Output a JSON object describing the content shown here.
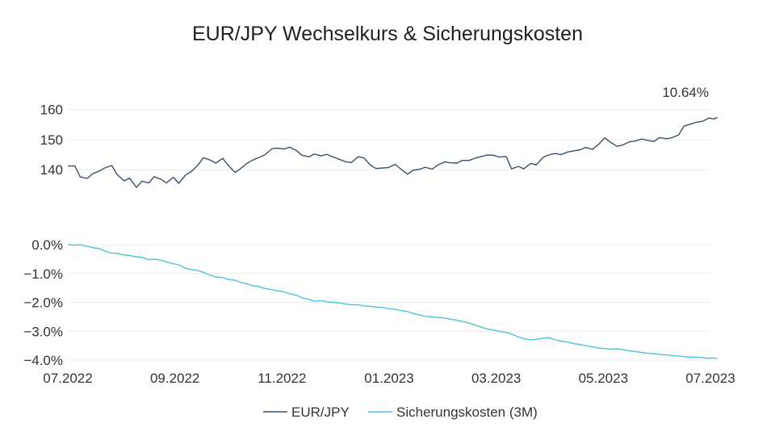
{
  "chart_data": {
    "type": "line",
    "title": "EUR/JPY Wechselkurs & Sicherungskosten",
    "x_tick_labels": [
      "07.2022",
      "09.2022",
      "11.2022",
      "01.2023",
      "03.2023",
      "05.2023",
      "07.2023"
    ],
    "x_range": [
      "2022-07-01",
      "2023-07-01"
    ],
    "grid": true,
    "legend_position": "bottom-center",
    "panels": [
      {
        "name": "EUR/JPY",
        "y_tick_labels": [
          "140",
          "150",
          "160"
        ],
        "ylim": [
          132,
          161
        ],
        "annotation": "10.64%",
        "color": "#3d5166"
      },
      {
        "name": "Sicherungskosten (3M)",
        "y_tick_labels": [
          "0.0%",
          "−1.0%",
          "−2.0%",
          "−3.0%",
          "−4.0%"
        ],
        "ylim": [
          -4.0,
          0.0
        ],
        "color": "#4fc3d9"
      }
    ],
    "series": [
      {
        "name": "EUR/JPY",
        "color": "#3d5166",
        "points": [
          [
            "2022-07-01",
            141.2
          ],
          [
            "2022-07-05",
            141.3
          ],
          [
            "2022-07-08",
            137.6
          ],
          [
            "2022-07-12",
            137.1
          ],
          [
            "2022-07-15",
            138.6
          ],
          [
            "2022-07-19",
            139.6
          ],
          [
            "2022-07-22",
            140.6
          ],
          [
            "2022-07-26",
            141.4
          ],
          [
            "2022-07-29",
            138.4
          ],
          [
            "2022-08-02",
            136.3
          ],
          [
            "2022-08-05",
            137.2
          ],
          [
            "2022-08-09",
            134.1
          ],
          [
            "2022-08-12",
            136.2
          ],
          [
            "2022-08-16",
            135.6
          ],
          [
            "2022-08-19",
            137.7
          ],
          [
            "2022-08-23",
            136.8
          ],
          [
            "2022-08-26",
            135.6
          ],
          [
            "2022-08-30",
            137.5
          ],
          [
            "2022-09-02",
            135.5
          ],
          [
            "2022-09-06",
            138.3
          ],
          [
            "2022-09-09",
            139.3
          ],
          [
            "2022-09-13",
            141.6
          ],
          [
            "2022-09-16",
            144.0
          ],
          [
            "2022-09-20",
            143.2
          ],
          [
            "2022-09-23",
            142.2
          ],
          [
            "2022-09-27",
            143.8
          ],
          [
            "2022-09-30",
            141.5
          ],
          [
            "2022-10-04",
            139.1
          ],
          [
            "2022-10-07",
            140.3
          ],
          [
            "2022-10-11",
            142.2
          ],
          [
            "2022-10-14",
            143.2
          ],
          [
            "2022-10-18",
            144.2
          ],
          [
            "2022-10-21",
            145.0
          ],
          [
            "2022-10-25",
            147.0
          ],
          [
            "2022-10-28",
            147.2
          ],
          [
            "2022-11-01",
            146.9
          ],
          [
            "2022-11-04",
            147.5
          ],
          [
            "2022-11-08",
            146.3
          ],
          [
            "2022-11-11",
            144.8
          ],
          [
            "2022-11-15",
            144.3
          ],
          [
            "2022-11-18",
            145.2
          ],
          [
            "2022-11-22",
            144.6
          ],
          [
            "2022-11-25",
            145.1
          ],
          [
            "2022-11-29",
            144.2
          ],
          [
            "2022-12-02",
            143.5
          ],
          [
            "2022-12-06",
            142.6
          ],
          [
            "2022-12-09",
            142.4
          ],
          [
            "2022-12-13",
            144.3
          ],
          [
            "2022-12-16",
            144.0
          ],
          [
            "2022-12-20",
            141.5
          ],
          [
            "2022-12-23",
            140.4
          ],
          [
            "2022-12-27",
            140.6
          ],
          [
            "2022-12-30",
            140.7
          ],
          [
            "2023-01-03",
            141.8
          ],
          [
            "2023-01-06",
            140.3
          ],
          [
            "2023-01-10",
            138.5
          ],
          [
            "2023-01-13",
            139.8
          ],
          [
            "2023-01-17",
            140.2
          ],
          [
            "2023-01-20",
            140.8
          ],
          [
            "2023-01-24",
            140.2
          ],
          [
            "2023-01-27",
            141.5
          ],
          [
            "2023-01-31",
            142.6
          ],
          [
            "2023-02-03",
            142.3
          ],
          [
            "2023-02-07",
            142.2
          ],
          [
            "2023-02-10",
            143.1
          ],
          [
            "2023-02-14",
            143.1
          ],
          [
            "2023-02-17",
            143.8
          ],
          [
            "2023-02-21",
            144.4
          ],
          [
            "2023-02-24",
            144.9
          ],
          [
            "2023-02-28",
            144.8
          ],
          [
            "2023-03-03",
            144.2
          ],
          [
            "2023-03-07",
            144.4
          ],
          [
            "2023-03-10",
            140.3
          ],
          [
            "2023-03-14",
            141.1
          ],
          [
            "2023-03-17",
            140.3
          ],
          [
            "2023-03-21",
            142.1
          ],
          [
            "2023-03-24",
            141.6
          ],
          [
            "2023-03-28",
            144.1
          ],
          [
            "2023-03-31",
            144.9
          ],
          [
            "2023-04-04",
            145.4
          ],
          [
            "2023-04-07",
            145.0
          ],
          [
            "2023-04-11",
            145.9
          ],
          [
            "2023-04-14",
            146.2
          ],
          [
            "2023-04-18",
            146.6
          ],
          [
            "2023-04-21",
            147.4
          ],
          [
            "2023-04-25",
            146.8
          ],
          [
            "2023-04-28",
            148.2
          ],
          [
            "2023-05-02",
            150.6
          ],
          [
            "2023-05-05",
            149.2
          ],
          [
            "2023-05-09",
            147.8
          ],
          [
            "2023-05-12",
            148.2
          ],
          [
            "2023-05-16",
            149.3
          ],
          [
            "2023-05-19",
            149.5
          ],
          [
            "2023-05-23",
            150.2
          ],
          [
            "2023-05-26",
            149.8
          ],
          [
            "2023-05-30",
            149.4
          ],
          [
            "2023-06-02",
            150.7
          ],
          [
            "2023-06-06",
            150.3
          ],
          [
            "2023-06-09",
            150.6
          ],
          [
            "2023-06-13",
            151.6
          ],
          [
            "2023-06-16",
            154.5
          ],
          [
            "2023-06-20",
            155.2
          ],
          [
            "2023-06-23",
            155.8
          ],
          [
            "2023-06-27",
            156.2
          ],
          [
            "2023-06-30",
            157.2
          ],
          [
            "2023-07-03",
            156.9
          ],
          [
            "2023-07-05",
            157.4
          ]
        ]
      },
      {
        "name": "Sicherungskosten (3M)",
        "color": "#4fc3d9",
        "points": [
          [
            "2022-07-01",
            0.0
          ],
          [
            "2022-07-05",
            -0.02
          ],
          [
            "2022-07-08",
            0.0
          ],
          [
            "2022-07-12",
            -0.06
          ],
          [
            "2022-07-15",
            -0.1
          ],
          [
            "2022-07-19",
            -0.14
          ],
          [
            "2022-07-22",
            -0.22
          ],
          [
            "2022-07-26",
            -0.3
          ],
          [
            "2022-07-29",
            -0.3
          ],
          [
            "2022-08-02",
            -0.36
          ],
          [
            "2022-08-05",
            -0.38
          ],
          [
            "2022-08-09",
            -0.42
          ],
          [
            "2022-08-12",
            -0.44
          ],
          [
            "2022-08-16",
            -0.52
          ],
          [
            "2022-08-19",
            -0.5
          ],
          [
            "2022-08-23",
            -0.54
          ],
          [
            "2022-08-26",
            -0.6
          ],
          [
            "2022-08-30",
            -0.66
          ],
          [
            "2022-09-02",
            -0.7
          ],
          [
            "2022-09-06",
            -0.82
          ],
          [
            "2022-09-09",
            -0.86
          ],
          [
            "2022-09-13",
            -0.9
          ],
          [
            "2022-09-16",
            -0.96
          ],
          [
            "2022-09-20",
            -1.06
          ],
          [
            "2022-09-23",
            -1.12
          ],
          [
            "2022-09-27",
            -1.14
          ],
          [
            "2022-09-30",
            -1.2
          ],
          [
            "2022-10-04",
            -1.24
          ],
          [
            "2022-10-07",
            -1.3
          ],
          [
            "2022-10-11",
            -1.36
          ],
          [
            "2022-10-14",
            -1.42
          ],
          [
            "2022-10-18",
            -1.46
          ],
          [
            "2022-10-21",
            -1.52
          ],
          [
            "2022-10-25",
            -1.56
          ],
          [
            "2022-10-28",
            -1.6
          ],
          [
            "2022-11-01",
            -1.64
          ],
          [
            "2022-11-04",
            -1.7
          ],
          [
            "2022-11-08",
            -1.76
          ],
          [
            "2022-11-11",
            -1.84
          ],
          [
            "2022-11-15",
            -1.9
          ],
          [
            "2022-11-18",
            -1.96
          ],
          [
            "2022-11-22",
            -1.94
          ],
          [
            "2022-11-25",
            -1.98
          ],
          [
            "2022-11-29",
            -2.0
          ],
          [
            "2022-12-02",
            -2.02
          ],
          [
            "2022-12-06",
            -2.06
          ],
          [
            "2022-12-09",
            -2.08
          ],
          [
            "2022-12-13",
            -2.08
          ],
          [
            "2022-12-16",
            -2.12
          ],
          [
            "2022-12-20",
            -2.14
          ],
          [
            "2022-12-23",
            -2.16
          ],
          [
            "2022-12-27",
            -2.18
          ],
          [
            "2022-12-30",
            -2.22
          ],
          [
            "2023-01-03",
            -2.24
          ],
          [
            "2023-01-06",
            -2.28
          ],
          [
            "2023-01-10",
            -2.32
          ],
          [
            "2023-01-13",
            -2.38
          ],
          [
            "2023-01-17",
            -2.44
          ],
          [
            "2023-01-20",
            -2.48
          ],
          [
            "2023-01-24",
            -2.5
          ],
          [
            "2023-01-27",
            -2.52
          ],
          [
            "2023-01-31",
            -2.54
          ],
          [
            "2023-02-03",
            -2.58
          ],
          [
            "2023-02-07",
            -2.62
          ],
          [
            "2023-02-10",
            -2.66
          ],
          [
            "2023-02-14",
            -2.72
          ],
          [
            "2023-02-17",
            -2.78
          ],
          [
            "2023-02-21",
            -2.86
          ],
          [
            "2023-02-24",
            -2.92
          ],
          [
            "2023-02-28",
            -2.96
          ],
          [
            "2023-03-03",
            -3.0
          ],
          [
            "2023-03-07",
            -3.04
          ],
          [
            "2023-03-10",
            -3.1
          ],
          [
            "2023-03-14",
            -3.2
          ],
          [
            "2023-03-17",
            -3.26
          ],
          [
            "2023-03-21",
            -3.3
          ],
          [
            "2023-03-24",
            -3.28
          ],
          [
            "2023-03-28",
            -3.24
          ],
          [
            "2023-03-31",
            -3.22
          ],
          [
            "2023-04-04",
            -3.3
          ],
          [
            "2023-04-07",
            -3.34
          ],
          [
            "2023-04-11",
            -3.38
          ],
          [
            "2023-04-14",
            -3.42
          ],
          [
            "2023-04-18",
            -3.46
          ],
          [
            "2023-04-21",
            -3.5
          ],
          [
            "2023-04-25",
            -3.54
          ],
          [
            "2023-04-28",
            -3.58
          ],
          [
            "2023-05-02",
            -3.6
          ],
          [
            "2023-05-05",
            -3.62
          ],
          [
            "2023-05-09",
            -3.6
          ],
          [
            "2023-05-12",
            -3.64
          ],
          [
            "2023-05-16",
            -3.68
          ],
          [
            "2023-05-19",
            -3.7
          ],
          [
            "2023-05-23",
            -3.74
          ],
          [
            "2023-05-26",
            -3.76
          ],
          [
            "2023-05-30",
            -3.78
          ],
          [
            "2023-06-02",
            -3.8
          ],
          [
            "2023-06-06",
            -3.82
          ],
          [
            "2023-06-09",
            -3.84
          ],
          [
            "2023-06-13",
            -3.86
          ],
          [
            "2023-06-16",
            -3.88
          ],
          [
            "2023-06-20",
            -3.9
          ],
          [
            "2023-06-23",
            -3.9
          ],
          [
            "2023-06-27",
            -3.92
          ],
          [
            "2023-06-30",
            -3.94
          ],
          [
            "2023-07-03",
            -3.92
          ],
          [
            "2023-07-05",
            -3.96
          ]
        ]
      }
    ]
  }
}
